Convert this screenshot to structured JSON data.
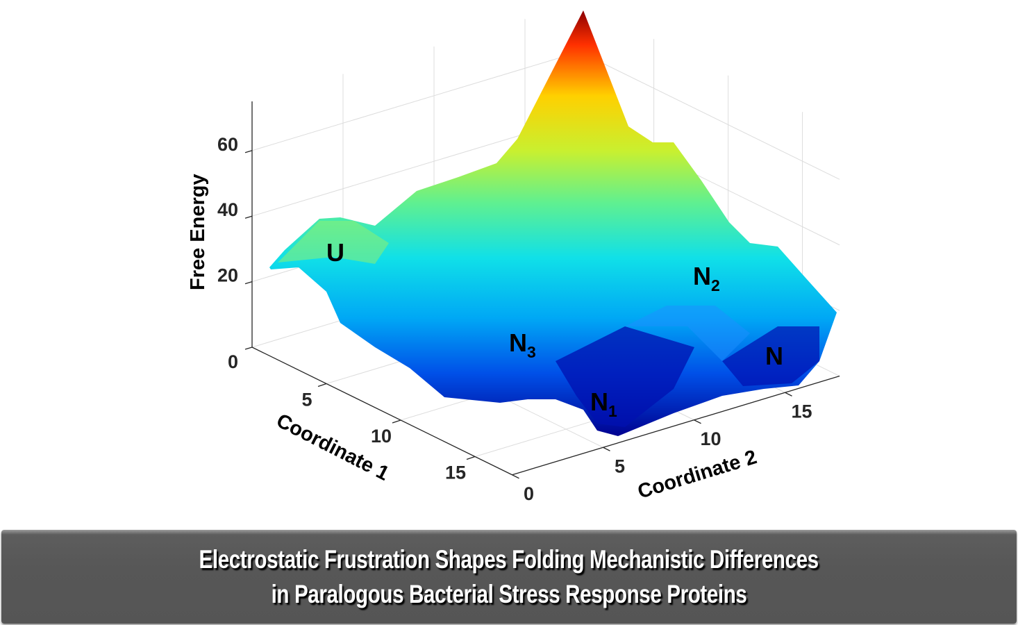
{
  "chart_data": {
    "type": "surface",
    "title": "",
    "xlabel": "Coordinate 1",
    "ylabel": "Coordinate 2",
    "zlabel": "Free Energy",
    "xlim": [
      0,
      17.5
    ],
    "ylim": [
      0,
      18
    ],
    "zlim": [
      0,
      75
    ],
    "xticks": [
      5,
      10,
      15
    ],
    "yticks": [
      0,
      5,
      10,
      15
    ],
    "zticks": [
      0,
      20,
      40,
      60
    ],
    "grid": true,
    "colormap": "jet",
    "peak": {
      "x": 0,
      "y": 18,
      "z": 75
    },
    "annotations": [
      {
        "base": "U",
        "sub": ""
      },
      {
        "base": "N",
        "sub": "2"
      },
      {
        "base": "N",
        "sub": "3"
      },
      {
        "base": "N",
        "sub": "1"
      },
      {
        "base": "N",
        "sub": ""
      }
    ]
  },
  "banner": {
    "line1": "Electrostatic Frustration Shapes Folding Mechanistic Differences",
    "line2": "in Paralogous Bacterial Stress Response Proteins"
  }
}
